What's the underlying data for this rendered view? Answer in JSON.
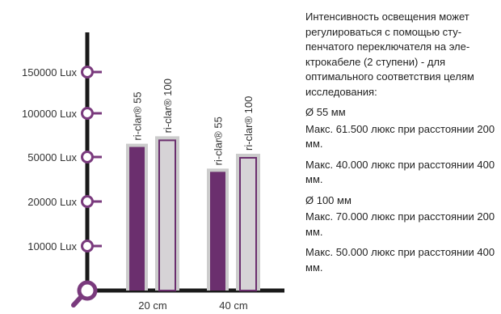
{
  "chart_data": {
    "type": "bar",
    "categories": [
      "20 cm",
      "40 cm"
    ],
    "y_ticks": [
      "10000 Lux",
      "20000 Lux",
      "50000 Lux",
      "100000 Lux",
      "150000 Lux"
    ],
    "y_tick_values": [
      10000,
      20000,
      50000,
      100000,
      150000
    ],
    "series": [
      {
        "name": "ri-clar® 55",
        "values": [
          61500,
          40000
        ]
      },
      {
        "name": "ri-clar® 100",
        "values": [
          70000,
          50000
        ]
      }
    ],
    "colors": {
      "series_55": "#6b2f6e",
      "series_100": "#d6d3d6",
      "series_100_border": "#6b2f6e",
      "bar_shadow": "#cccccc",
      "axis": "#1a1a1a",
      "marker": "#7a3a7d"
    },
    "title": "",
    "xlabel": "",
    "ylabel": "",
    "legend": "labels on bars",
    "grid": false
  },
  "description": {
    "intro": "Интенсивность освещения может регулироваться с помощью сту­пенчатого переключателя на эле­ктрокабеле (2 ступени) - для оптимального соответствия целям исследования:",
    "group1_head": "Ø 55 мм",
    "group1_line1": "Макс. 61.500 люкс при расстоянии 200 мм.",
    "group1_line2": "Макс. 40.000 люкс при расстоянии 400 мм.",
    "group2_head": "Ø 100 мм",
    "group2_line1": "Макс. 70.000 люкс при расстоянии 200 мм.",
    "group2_line2": "Макс. 50.000 люкс при расстоянии 400 мм."
  }
}
